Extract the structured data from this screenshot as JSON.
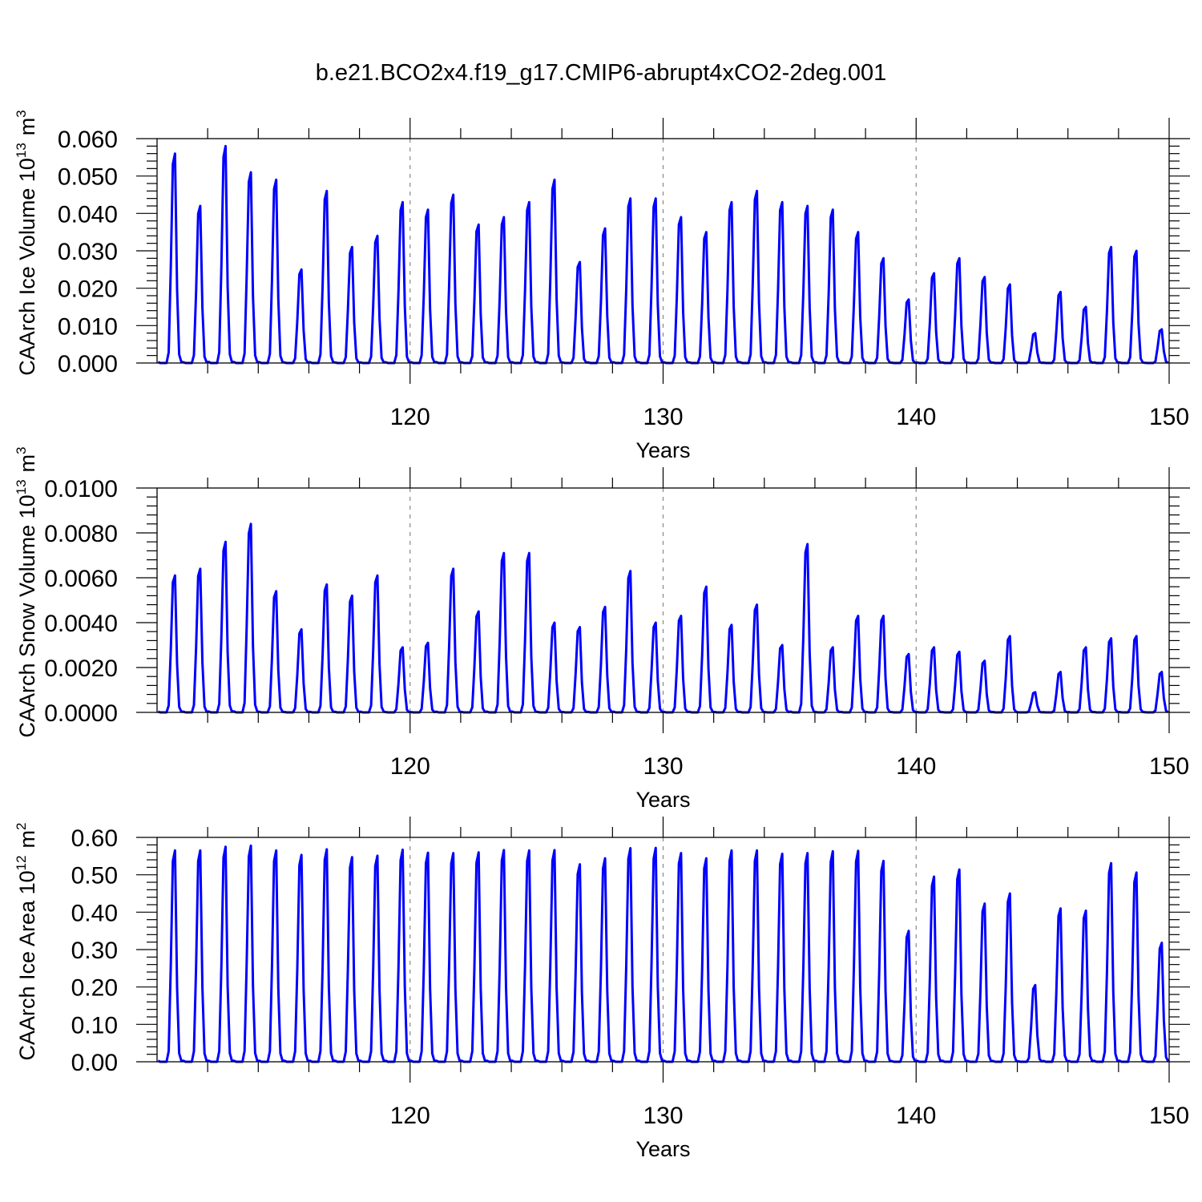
{
  "title": "b.e21.BCO2x4.f19_g17.CMIP6-abrupt4xCO2-2deg.001",
  "chart_data": [
    {
      "type": "line",
      "ylabel_main": "CAArch Ice Volume 10",
      "ylabel_exp": "13",
      "ylabel_unit": "m",
      "ylabel_unit_exp": "3",
      "xlabel": "Years",
      "xlim": [
        110,
        150
      ],
      "ylim": [
        0,
        0.06
      ],
      "xticks": [
        "120",
        "130",
        "140",
        "150"
      ],
      "yticks": [
        "0.000",
        "0.010",
        "0.020",
        "0.030",
        "0.040",
        "0.050",
        "0.060"
      ],
      "grid_x": [
        120,
        130,
        140
      ],
      "peaks": [
        0.056,
        0.042,
        0.058,
        0.051,
        0.049,
        0.025,
        0.046,
        0.031,
        0.034,
        0.043,
        0.041,
        0.045,
        0.037,
        0.039,
        0.043,
        0.049,
        0.027,
        0.036,
        0.044,
        0.044,
        0.039,
        0.035,
        0.043,
        0.046,
        0.043,
        0.042,
        0.041,
        0.035,
        0.028,
        0.017,
        0.024,
        0.028,
        0.023,
        0.021,
        0.008,
        0.019,
        0.015,
        0.031,
        0.03,
        0.009
      ],
      "series_name": "CAArch Ice Volume"
    },
    {
      "type": "line",
      "ylabel_main": "CAArch Snow Volume 10",
      "ylabel_exp": "13",
      "ylabel_unit": "m",
      "ylabel_unit_exp": "3",
      "xlabel": "Years",
      "xlim": [
        110,
        150
      ],
      "ylim": [
        0,
        0.01
      ],
      "xticks": [
        "120",
        "130",
        "140",
        "150"
      ],
      "yticks": [
        "0.0000",
        "0.0020",
        "0.0040",
        "0.0060",
        "0.0080",
        "0.0100"
      ],
      "grid_x": [
        120,
        130,
        140
      ],
      "peaks": [
        0.0061,
        0.0064,
        0.0076,
        0.0084,
        0.0054,
        0.0037,
        0.0057,
        0.0052,
        0.0061,
        0.0029,
        0.0031,
        0.0064,
        0.0045,
        0.0071,
        0.0071,
        0.004,
        0.0038,
        0.0047,
        0.0063,
        0.004,
        0.0043,
        0.0056,
        0.0039,
        0.0048,
        0.003,
        0.0075,
        0.0029,
        0.0043,
        0.0043,
        0.0026,
        0.0029,
        0.0027,
        0.0023,
        0.0034,
        0.0009,
        0.0018,
        0.0029,
        0.0033,
        0.0034,
        0.0018
      ],
      "series_name": "CAArch Snow Volume"
    },
    {
      "type": "line",
      "ylabel_main": "CAArch Ice Area 10",
      "ylabel_exp": "12",
      "ylabel_unit": "m",
      "ylabel_unit_exp": "2",
      "xlabel": "Years",
      "xlim": [
        110,
        150
      ],
      "ylim": [
        0,
        0.6
      ],
      "xticks": [
        "120",
        "130",
        "140",
        "150"
      ],
      "yticks": [
        "0.00",
        "0.10",
        "0.20",
        "0.30",
        "0.40",
        "0.50",
        "0.60"
      ],
      "grid_x": [
        120,
        130,
        140
      ],
      "peaks": [
        0.565,
        0.565,
        0.575,
        0.578,
        0.565,
        0.553,
        0.568,
        0.547,
        0.551,
        0.567,
        0.559,
        0.558,
        0.56,
        0.566,
        0.565,
        0.566,
        0.528,
        0.544,
        0.571,
        0.572,
        0.558,
        0.544,
        0.565,
        0.565,
        0.556,
        0.558,
        0.563,
        0.564,
        0.537,
        0.35,
        0.495,
        0.514,
        0.423,
        0.45,
        0.205,
        0.41,
        0.404,
        0.531,
        0.506,
        0.318
      ],
      "series_name": "CAArch Ice Area"
    }
  ]
}
